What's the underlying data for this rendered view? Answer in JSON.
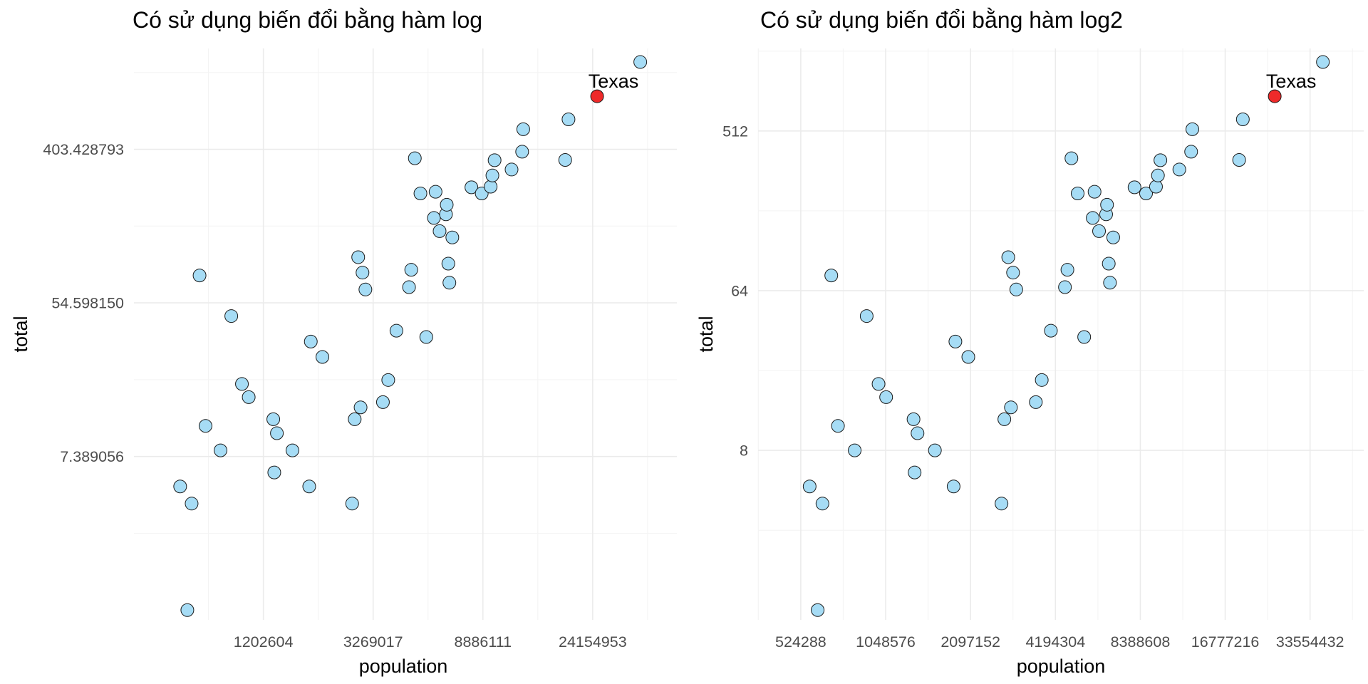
{
  "colors": {
    "point": "#a6dcf5",
    "highlight": "#ee2a2a",
    "outline": "#1a1a1a"
  },
  "chart_data": [
    {
      "type": "scatter",
      "title": "Có sử dụng biến đổi bằng hàm log",
      "xlabel": "population",
      "ylabel": "total",
      "x_scale": "log",
      "x_base": 2.718281828,
      "y_scale": "log",
      "y_base": 2.718281828,
      "xlim": [
        370000,
        52000000
      ],
      "ylim": [
        0.88,
        1500
      ],
      "x_ticks": [
        1202604,
        3269017,
        8886111,
        24154953
      ],
      "x_tick_labels": [
        "1202604",
        "3269017",
        "8886111",
        "24154953"
      ],
      "y_ticks": [
        7.389056,
        54.59815,
        403.428793
      ],
      "y_tick_labels": [
        "7.389056",
        "54.598150",
        "403.428793"
      ],
      "grid": true,
      "highlight": {
        "label": "Texas",
        "x": 25145561,
        "y": 805
      },
      "x": [
        563626,
        601723,
        625741,
        672591,
        710231,
        814180,
        897934,
        989415,
        1052567,
        1316470,
        1328361,
        1360301,
        1567582,
        1826341,
        1852994,
        2059179,
        2700551,
        2763885,
        2853118,
        2915918,
        2967297,
        3046355,
        3574097,
        3751351,
        4041769,
        4533372,
        4625364,
        4779736,
        5029196,
        5303925,
        5686986,
        5773552,
        5988927,
        6346105,
        6392017,
        6483802,
        6547629,
        6724540,
        8001024,
        8791894,
        9535483,
        9687653,
        9883640,
        11536504,
        12702379,
        12830632,
        18801310,
        19378102,
        37253956
      ],
      "y": [
        5,
        1,
        4,
        78,
        11,
        8,
        46,
        19,
        16,
        12,
        6,
        10,
        8,
        5,
        33,
        27,
        4,
        12,
        99,
        14,
        81,
        65,
        15,
        20,
        38,
        67,
        84,
        359,
        227,
        35,
        165,
        232,
        139,
        173,
        196,
        91,
        71,
        128,
        246,
        227,
        248,
        287,
        350,
        310,
        391,
        524,
        351,
        596,
        1257
      ]
    },
    {
      "type": "scatter",
      "title": "Có sử dụng biến đổi bằng hàm log2",
      "xlabel": "population",
      "ylabel": "total",
      "x_scale": "log",
      "x_base": 2,
      "y_scale": "log",
      "y_base": 2,
      "xlim": [
        370000,
        52000000
      ],
      "ylim": [
        0.88,
        1500
      ],
      "x_ticks": [
        524288,
        1048576,
        2097152,
        4194304,
        8388608,
        16777216,
        33554432
      ],
      "x_tick_labels": [
        "524288",
        "1048576",
        "2097152",
        "4194304",
        "8388608",
        "16777216",
        "33554432"
      ],
      "y_ticks": [
        8,
        64,
        512
      ],
      "y_tick_labels": [
        "8",
        "64",
        "512"
      ],
      "grid": true,
      "highlight": {
        "label": "Texas",
        "x": 25145561,
        "y": 805
      },
      "x": [
        563626,
        601723,
        625741,
        672591,
        710231,
        814180,
        897934,
        989415,
        1052567,
        1316470,
        1328361,
        1360301,
        1567582,
        1826341,
        1852994,
        2059179,
        2700551,
        2763885,
        2853118,
        2915918,
        2967297,
        3046355,
        3574097,
        3751351,
        4041769,
        4533372,
        4625364,
        4779736,
        5029196,
        5303925,
        5686986,
        5773552,
        5988927,
        6346105,
        6392017,
        6483802,
        6547629,
        6724540,
        8001024,
        8791894,
        9535483,
        9687653,
        9883640,
        11536504,
        12702379,
        12830632,
        18801310,
        19378102,
        37253956
      ],
      "y": [
        5,
        1,
        4,
        78,
        11,
        8,
        46,
        19,
        16,
        12,
        6,
        10,
        8,
        5,
        33,
        27,
        4,
        12,
        99,
        14,
        81,
        65,
        15,
        20,
        38,
        67,
        84,
        359,
        227,
        35,
        165,
        232,
        139,
        173,
        196,
        91,
        71,
        128,
        246,
        227,
        248,
        287,
        350,
        310,
        391,
        524,
        351,
        596,
        1257
      ]
    }
  ]
}
